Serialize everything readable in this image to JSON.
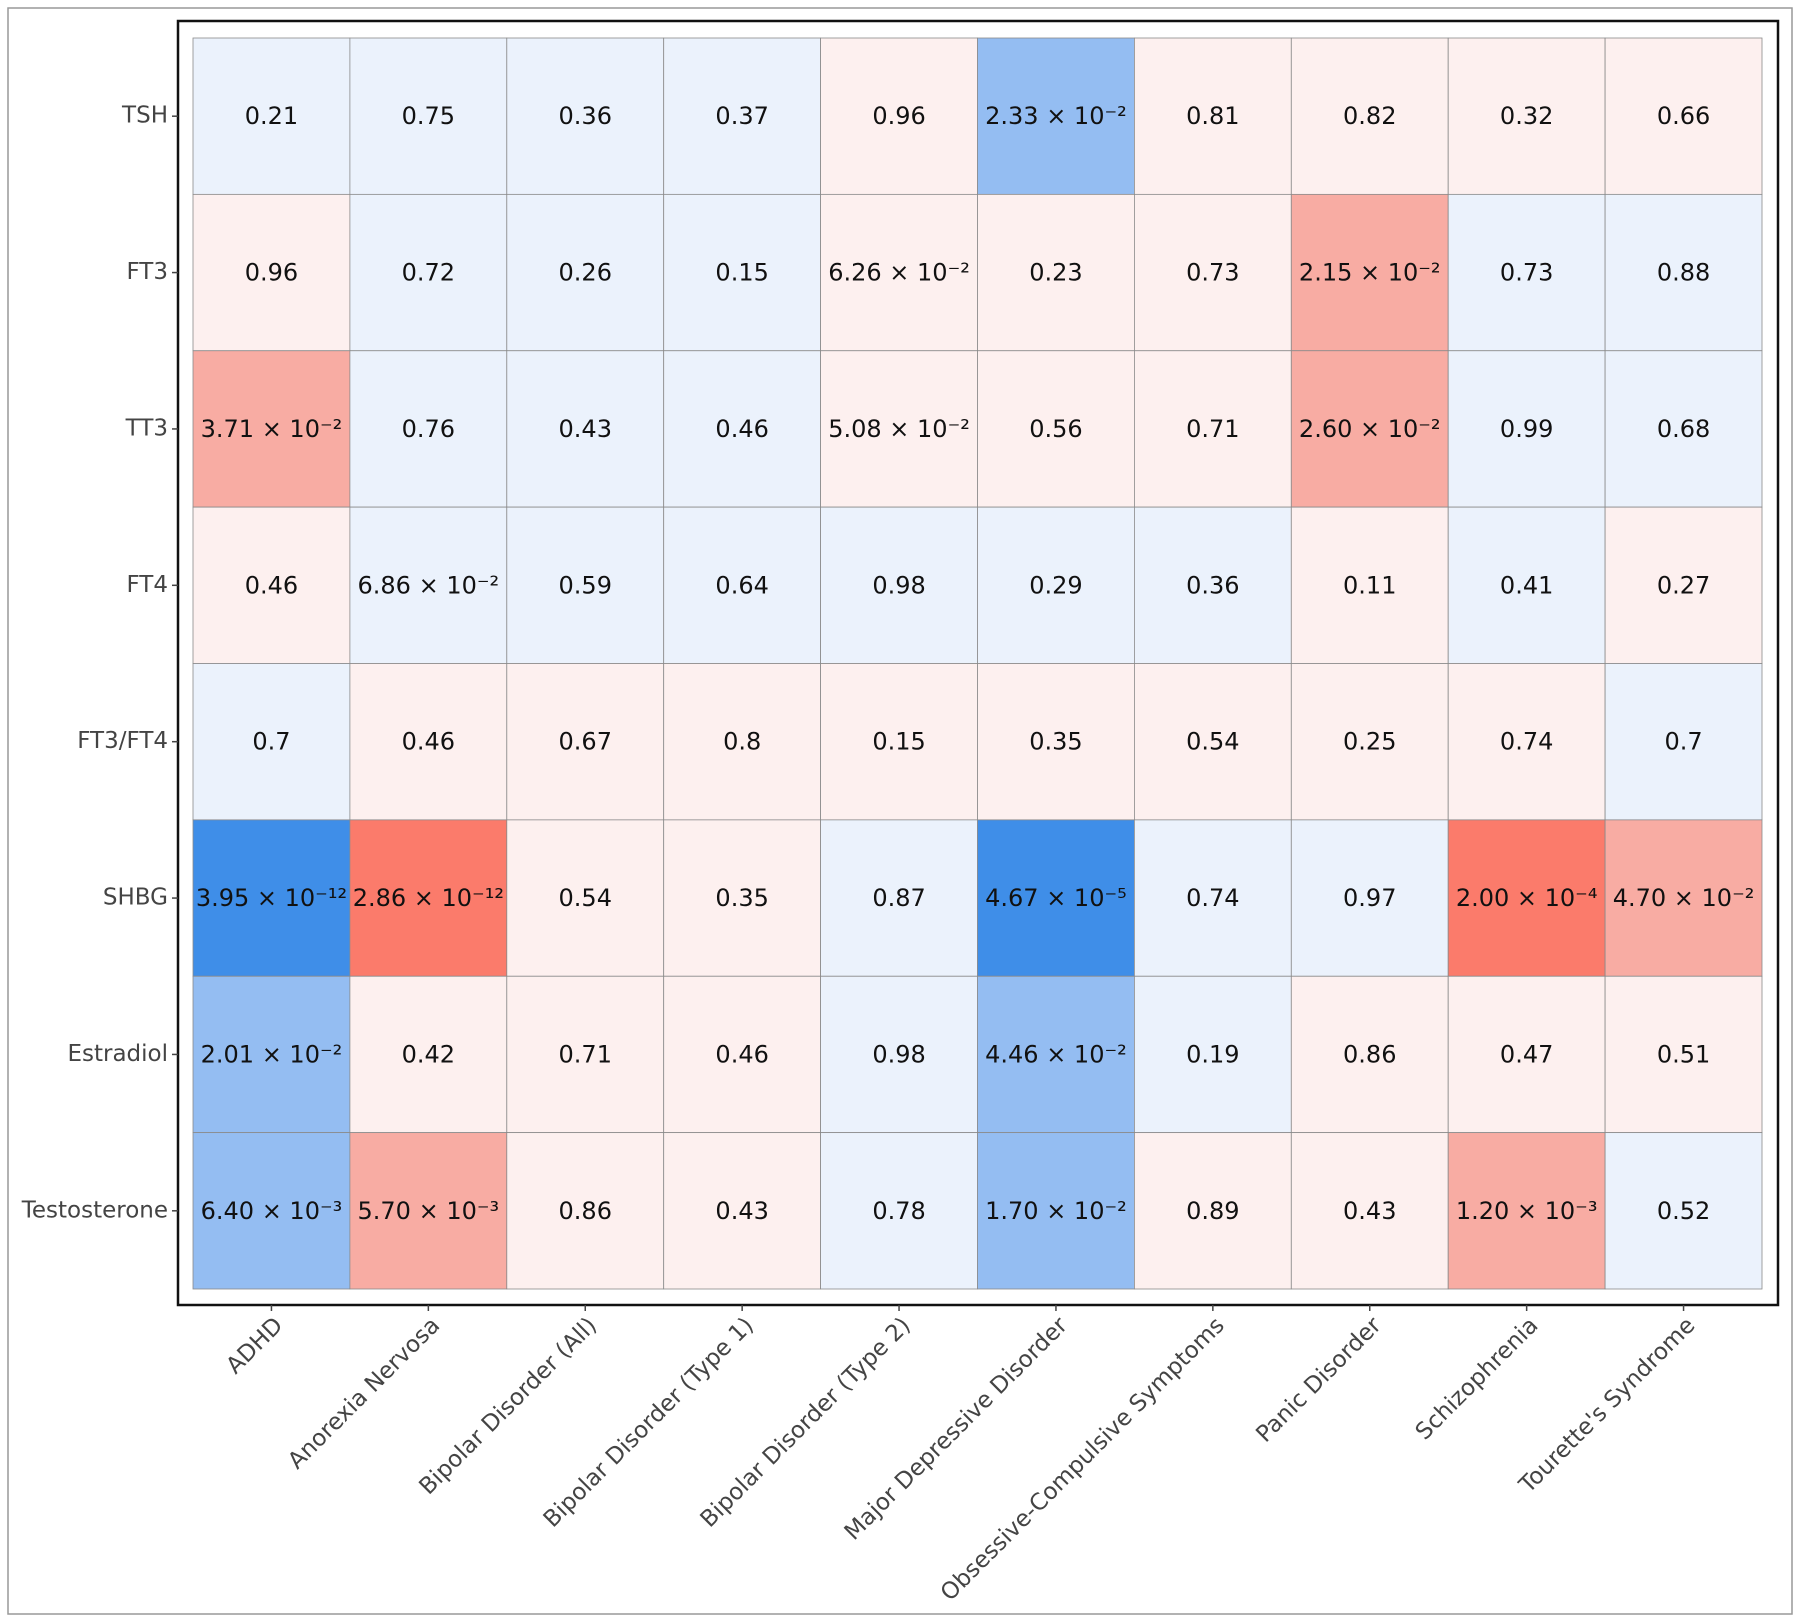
{
  "chart_data": {
    "type": "heatmap",
    "x_categories": [
      "ADHD",
      "Anorexia Nervosa",
      "Bipolar Disorder (All)",
      "Bipolar Disorder (Type 1)",
      "Bipolar Disorder (Type 2)",
      "Major Depressive Disorder",
      "Obsessive-Compulsive Symptoms",
      "Panic Disorder",
      "Schizophrenia",
      "Tourette's Syndrome"
    ],
    "y_categories": [
      "TSH",
      "FT3",
      "TT3",
      "FT4",
      "FT3/FT4",
      "SHBG",
      "Estradiol",
      "Testosterone"
    ],
    "values": [
      [
        0.21,
        0.75,
        0.36,
        0.37,
        0.96,
        0.0233,
        0.81,
        0.82,
        0.32,
        0.66
      ],
      [
        0.96,
        0.72,
        0.26,
        0.15,
        0.0626,
        0.23,
        0.73,
        0.0215,
        0.73,
        0.88
      ],
      [
        0.0371,
        0.76,
        0.43,
        0.46,
        0.0508,
        0.56,
        0.71,
        0.026,
        0.99,
        0.68
      ],
      [
        0.46,
        0.0686,
        0.59,
        0.64,
        0.98,
        0.29,
        0.36,
        0.11,
        0.41,
        0.27
      ],
      [
        0.7,
        0.46,
        0.67,
        0.8,
        0.15,
        0.35,
        0.54,
        0.25,
        0.74,
        0.7
      ],
      [
        3.95e-12,
        2.86e-12,
        0.54,
        0.35,
        0.87,
        4.67e-05,
        0.74,
        0.97,
        0.0002,
        0.047
      ],
      [
        0.0201,
        0.42,
        0.71,
        0.46,
        0.98,
        0.0446,
        0.19,
        0.86,
        0.47,
        0.51
      ],
      [
        0.0064,
        0.0057,
        0.86,
        0.43,
        0.78,
        0.017,
        0.89,
        0.43,
        0.0012,
        0.52
      ]
    ],
    "value_labels": [
      [
        null,
        null,
        null,
        null,
        null,
        "2.33 × 10⁻²",
        null,
        null,
        null,
        null
      ],
      [
        null,
        null,
        null,
        null,
        "6.26 × 10⁻²",
        null,
        null,
        "2.15 × 10⁻²",
        null,
        null
      ],
      [
        "3.71 × 10⁻²",
        null,
        null,
        null,
        "5.08 × 10⁻²",
        null,
        null,
        "2.60 × 10⁻²",
        null,
        null
      ],
      [
        null,
        "6.86 × 10⁻²",
        null,
        null,
        null,
        null,
        null,
        null,
        null,
        null
      ],
      [
        null,
        null,
        null,
        null,
        null,
        null,
        null,
        null,
        null,
        null
      ],
      [
        "3.95 × 10⁻¹²",
        "2.86 × 10⁻¹²",
        null,
        null,
        null,
        "4.67 × 10⁻⁵",
        null,
        null,
        "2.00 × 10⁻⁴",
        "4.70 × 10⁻²"
      ],
      [
        "2.01 × 10⁻²",
        null,
        null,
        null,
        null,
        "4.46 × 10⁻²",
        null,
        null,
        null,
        null
      ],
      [
        "6.40 × 10⁻³",
        "5.70 × 10⁻³",
        null,
        null,
        null,
        "1.70 × 10⁻²",
        null,
        null,
        "1.20 × 10⁻³",
        null
      ]
    ],
    "colors": [
      [
        "#ebf2fc",
        "#ebf2fc",
        "#ebf2fc",
        "#ebf2fc",
        "#fdf0ef",
        "#94bdf2",
        "#fdf0ef",
        "#fdf0ef",
        "#fdf0ef",
        "#fdf0ef"
      ],
      [
        "#fdf0ef",
        "#ebf2fc",
        "#ebf2fc",
        "#ebf2fc",
        "#fdf0ef",
        "#fdf0ef",
        "#fdf0ef",
        "#f8aca3",
        "#ebf2fc",
        "#ebf2fc"
      ],
      [
        "#f8aca3",
        "#ebf2fc",
        "#ebf2fc",
        "#ebf2fc",
        "#fdf0ef",
        "#fdf0ef",
        "#fdf0ef",
        "#f8aca3",
        "#ebf2fc",
        "#ebf2fc"
      ],
      [
        "#fdf0ef",
        "#ebf2fc",
        "#ebf2fc",
        "#ebf2fc",
        "#ebf2fc",
        "#ebf2fc",
        "#ebf2fc",
        "#fdf0ef",
        "#ebf2fc",
        "#fdf0ef"
      ],
      [
        "#ebf2fc",
        "#fdf0ef",
        "#fdf0ef",
        "#fdf0ef",
        "#fdf0ef",
        "#fdf0ef",
        "#fdf0ef",
        "#fdf0ef",
        "#fdf0ef",
        "#ebf2fc"
      ],
      [
        "#3f8ee8",
        "#fb7b6b",
        "#fdf0ef",
        "#fdf0ef",
        "#ebf2fc",
        "#3f8ee8",
        "#ebf2fc",
        "#ebf2fc",
        "#fb7b6b",
        "#f8aca3"
      ],
      [
        "#94bdf2",
        "#fdf0ef",
        "#fdf0ef",
        "#fdf0ef",
        "#ebf2fc",
        "#94bdf2",
        "#ebf2fc",
        "#fdf0ef",
        "#fdf0ef",
        "#fdf0ef"
      ],
      [
        "#94bdf2",
        "#f8aca3",
        "#fdf0ef",
        "#fdf0ef",
        "#ebf2fc",
        "#94bdf2",
        "#fdf0ef",
        "#fdf0ef",
        "#f8aca3",
        "#ebf2fc"
      ]
    ]
  }
}
